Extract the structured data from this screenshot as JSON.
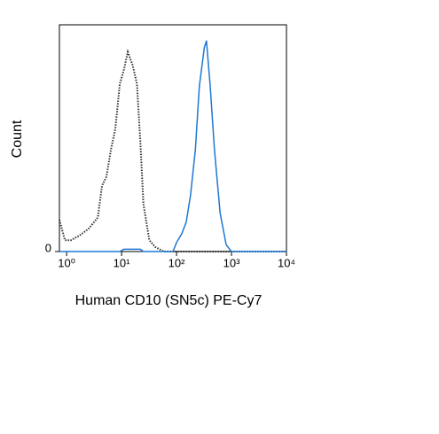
{
  "chart_data": {
    "type": "line",
    "x_label": "Human CD10 (SN5c) PE-Cy7",
    "y_label": "Count",
    "x": [
      0.74,
      0.93,
      1.2,
      1.7,
      2.5,
      3.7,
      4.4,
      5.3,
      6.4,
      7.7,
      9.3,
      11,
      13,
      16,
      19,
      22,
      25,
      32,
      41,
      59,
      86,
      100,
      125,
      150,
      180,
      220,
      260,
      320,
      350,
      410,
      490,
      620,
      800,
      1000,
      1700,
      4300,
      10000
    ],
    "series": [
      {
        "color": "#333333",
        "dash": "dotted",
        "values": [
          14,
          5,
          5,
          7,
          10,
          15,
          29,
          33,
          45,
          54,
          74,
          80,
          88,
          82,
          74,
          48,
          21,
          5,
          2,
          0,
          0,
          0,
          0,
          0,
          0,
          0,
          0,
          0,
          0,
          0,
          0,
          0,
          0,
          0,
          0,
          0,
          0
        ]
      },
      {
        "color": "#1e78d2",
        "dash": "solid",
        "values": [
          0,
          0,
          0,
          0,
          0,
          0,
          0,
          0,
          0,
          0,
          0,
          1,
          1,
          1,
          1,
          1,
          0,
          0,
          0,
          0,
          0,
          4,
          8,
          13,
          25,
          45,
          73,
          90,
          93,
          73,
          45,
          17,
          3,
          0,
          0,
          0,
          0
        ]
      }
    ],
    "xscale": "log",
    "xlim": [
      0.74,
      10000
    ],
    "xticks": [
      {
        "value": 1,
        "label": "10⁰"
      },
      {
        "value": 10,
        "label": "10¹"
      },
      {
        "value": 100,
        "label": "10²"
      },
      {
        "value": 1000,
        "label": "10³"
      },
      {
        "value": 10000,
        "label": "10⁴"
      }
    ],
    "ylim": [
      0,
      100
    ],
    "yticks": [
      0
    ]
  }
}
